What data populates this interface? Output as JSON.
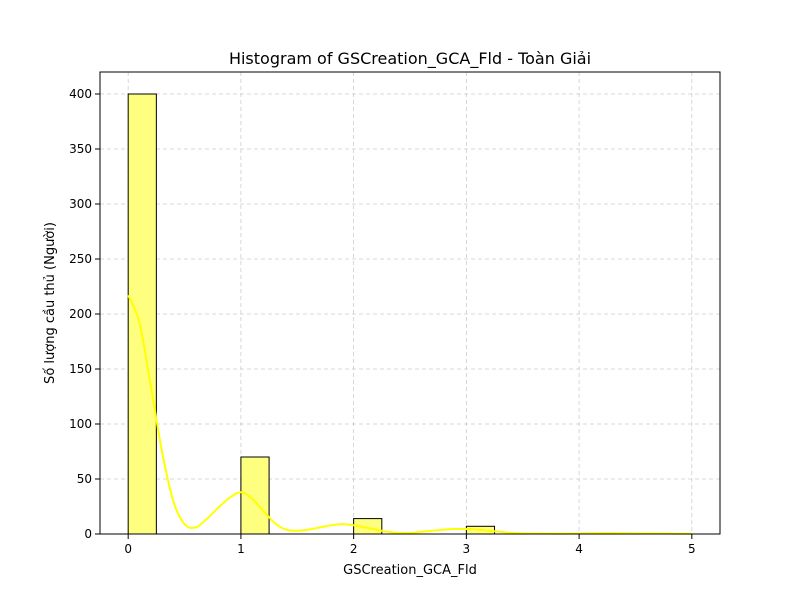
{
  "chart_data": {
    "type": "bar",
    "title": "Histogram of GSCreation_GCA_Fld - Toàn Giải",
    "xlabel": "GSCreation_GCA_Fld",
    "ylabel": "Số lượng cầu thủ (Người)",
    "xlim": [
      -0.25,
      5.25
    ],
    "ylim": [
      0,
      420
    ],
    "xticks": [
      0,
      1,
      2,
      3,
      4,
      5
    ],
    "yticks": [
      0,
      50,
      100,
      150,
      200,
      250,
      300,
      350,
      400
    ],
    "grid": true,
    "bin_width": 0.25,
    "bins": [
      {
        "start": 0.0,
        "count": 400
      },
      {
        "start": 0.25,
        "count": 0
      },
      {
        "start": 0.5,
        "count": 0
      },
      {
        "start": 0.75,
        "count": 0
      },
      {
        "start": 1.0,
        "count": 70
      },
      {
        "start": 1.25,
        "count": 0
      },
      {
        "start": 1.5,
        "count": 0
      },
      {
        "start": 1.75,
        "count": 0
      },
      {
        "start": 2.0,
        "count": 14
      },
      {
        "start": 2.25,
        "count": 0
      },
      {
        "start": 2.5,
        "count": 0
      },
      {
        "start": 2.75,
        "count": 0
      },
      {
        "start": 3.0,
        "count": 7
      },
      {
        "start": 3.25,
        "count": 0
      },
      {
        "start": 3.5,
        "count": 0
      },
      {
        "start": 3.75,
        "count": 0
      },
      {
        "start": 4.0,
        "count": 0
      },
      {
        "start": 4.25,
        "count": 0
      },
      {
        "start": 4.5,
        "count": 0
      },
      {
        "start": 4.75,
        "count": 0
      }
    ],
    "kde": {
      "x": [
        0,
        0.1,
        0.2,
        0.3,
        0.4,
        0.5,
        0.6,
        0.7,
        0.8,
        0.9,
        1.0,
        1.1,
        1.2,
        1.3,
        1.4,
        1.5,
        1.6,
        1.7,
        1.8,
        1.9,
        2.0,
        2.1,
        2.2,
        2.3,
        2.4,
        2.5,
        2.6,
        2.7,
        2.8,
        2.9,
        3.0,
        3.1,
        3.2,
        3.3,
        3.4,
        3.5,
        3.75,
        4.0,
        4.25,
        4.5,
        4.75,
        5.0
      ],
      "y": [
        217,
        192,
        135,
        75,
        30,
        9,
        6,
        14,
        24,
        33,
        38,
        32,
        21,
        10,
        4,
        3,
        4,
        6,
        8,
        9,
        8,
        6,
        4,
        2,
        1,
        1,
        2,
        3,
        4,
        4.5,
        4.5,
        4,
        3,
        2,
        1,
        0.6,
        0.4,
        0.5,
        0.8,
        0.6,
        0.4,
        0.2
      ]
    },
    "colors": {
      "bar_fill": "#ffff7f",
      "bar_edge": "#000000",
      "kde_line": "#ffff00",
      "grid": "#cccccc"
    }
  }
}
